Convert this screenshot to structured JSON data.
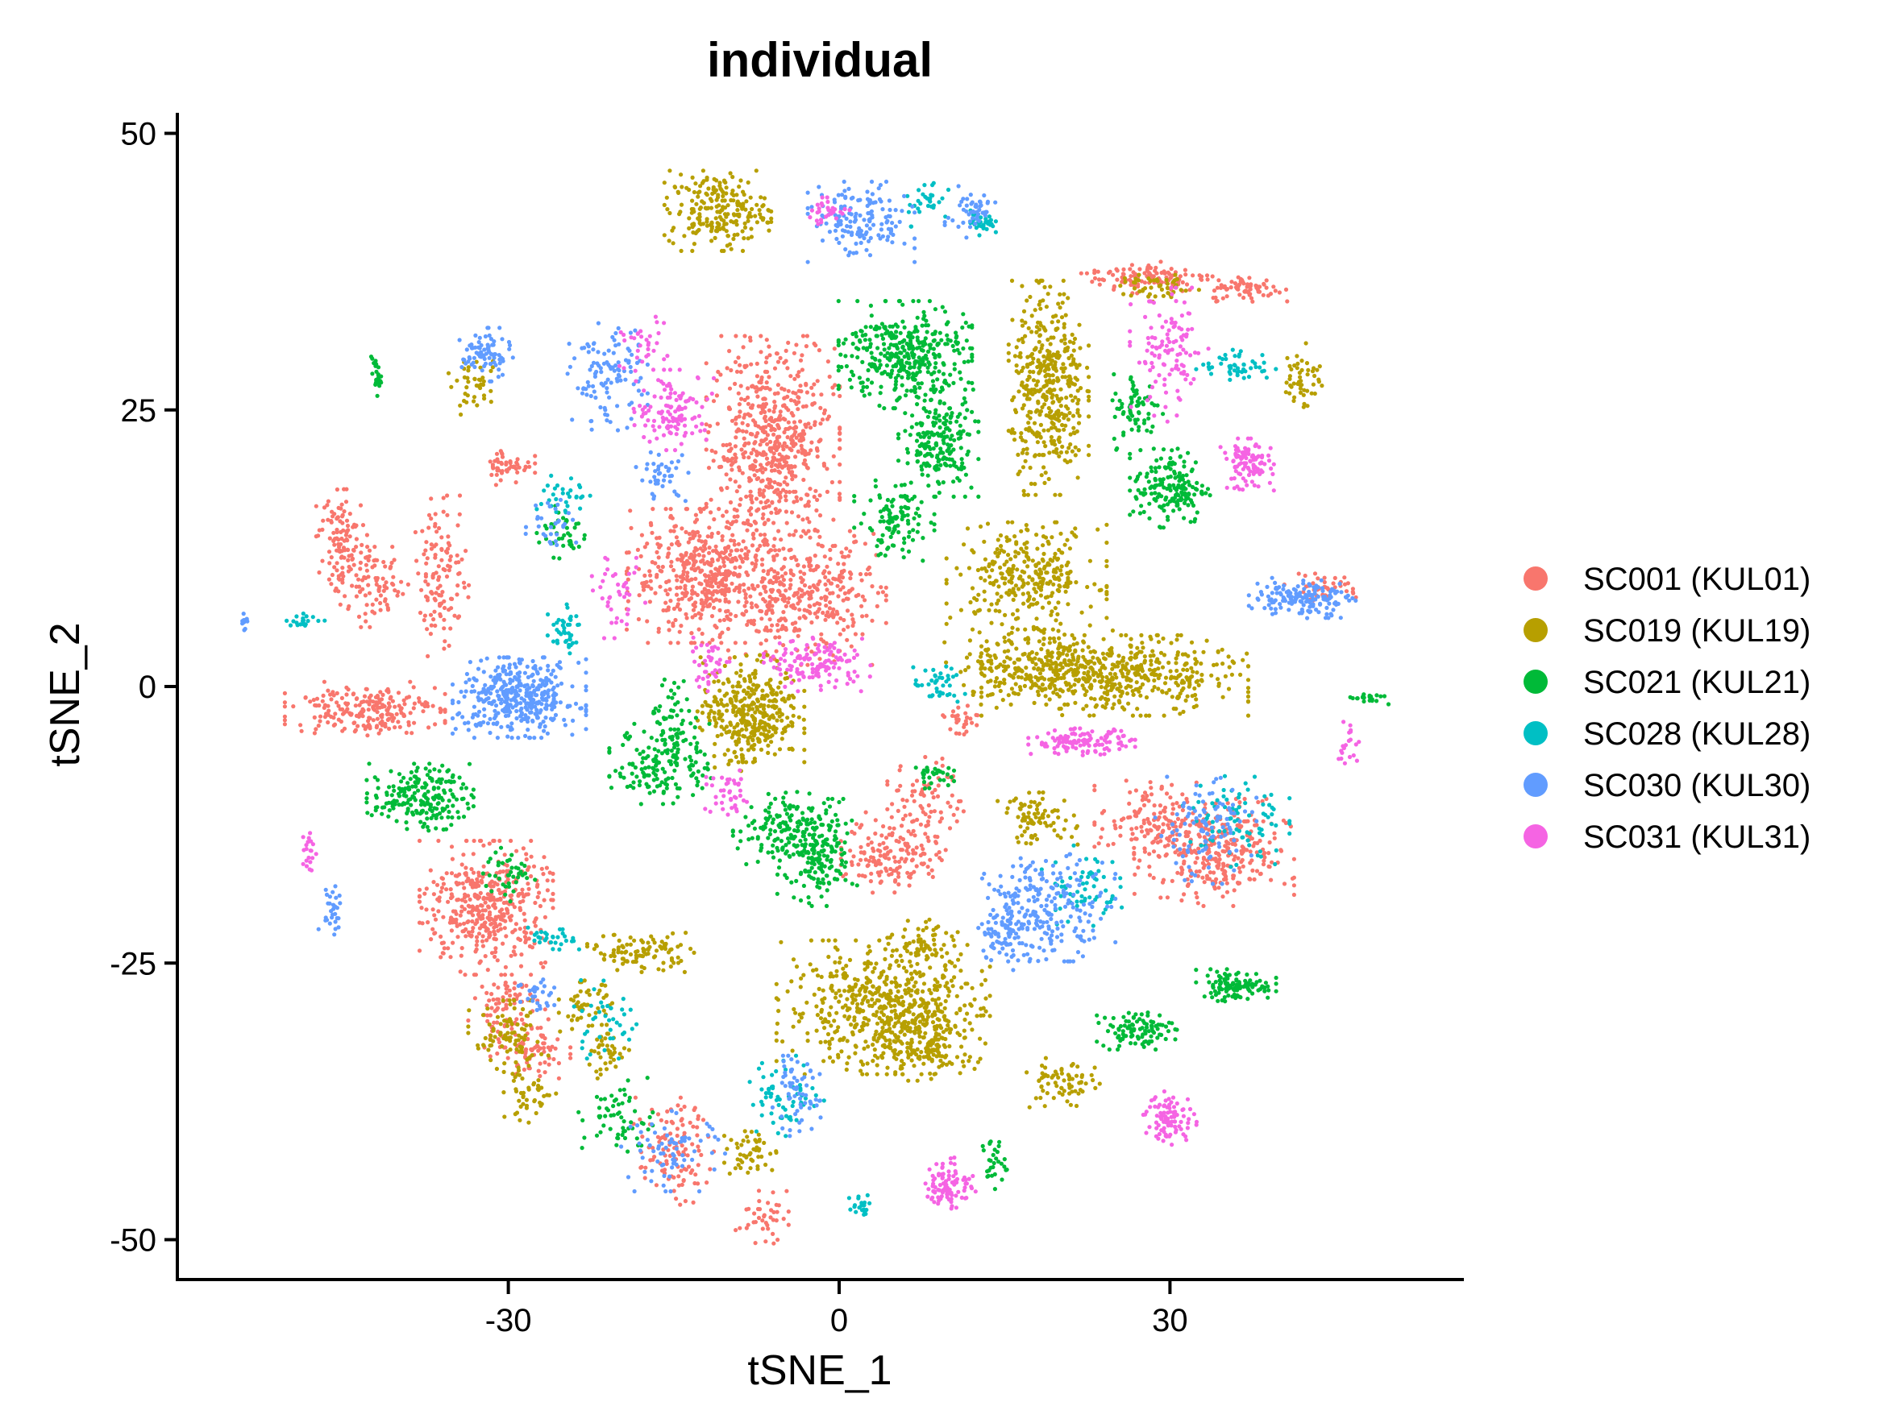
{
  "chart_data": {
    "type": "scatter",
    "title": "individual",
    "xlabel": "tSNE_1",
    "ylabel": "tSNE_2",
    "xlim": [
      -60,
      56
    ],
    "ylim": [
      -53,
      52
    ],
    "x_ticks": [
      -30,
      0,
      30
    ],
    "x_tick_labels": [
      "-30",
      "0",
      "30"
    ],
    "y_ticks": [
      50,
      25,
      0,
      -25,
      -50
    ],
    "y_tick_labels": [
      "50",
      "25",
      "0",
      "-25",
      "-50"
    ],
    "grid": false,
    "legend_position": "right",
    "series": [
      {
        "name": "SC001 (KUL01)",
        "color": "#F8766D",
        "clusters": [
          [
            -6,
            22,
            5,
            8,
            600
          ],
          [
            -12,
            10,
            6,
            5,
            500
          ],
          [
            -3,
            8,
            6,
            5,
            350
          ],
          [
            -45,
            13,
            2,
            4,
            120
          ],
          [
            -36,
            10,
            2,
            6,
            120
          ],
          [
            -42,
            9,
            3,
            3,
            80
          ],
          [
            -43,
            -2,
            6,
            2,
            220
          ],
          [
            -32,
            -20,
            5,
            5,
            420
          ],
          [
            -30,
            -29,
            3,
            3,
            90
          ],
          [
            -28,
            -33,
            3,
            2,
            70
          ],
          [
            -15,
            -42,
            3,
            4,
            110
          ],
          [
            -7,
            -48,
            2,
            2,
            40
          ],
          [
            5,
            -15,
            4,
            3,
            160
          ],
          [
            8,
            -10,
            3,
            3,
            70
          ],
          [
            34,
            -15,
            6,
            4,
            320
          ],
          [
            28,
            -12,
            4,
            3,
            110
          ],
          [
            28,
            37,
            5,
            1.2,
            110
          ],
          [
            37,
            36,
            3,
            1,
            70
          ],
          [
            -30,
            20,
            2,
            1.5,
            50
          ],
          [
            44,
            9,
            3,
            1,
            40
          ],
          [
            11,
            -3,
            2,
            1.5,
            30
          ]
        ]
      },
      {
        "name": "SC019 (KUL19)",
        "color": "#B79F00",
        "clusters": [
          [
            -11,
            43,
            4,
            3,
            220
          ],
          [
            -8,
            -2,
            4,
            4,
            300
          ],
          [
            19,
            27,
            3,
            8,
            420
          ],
          [
            17,
            10,
            6,
            4,
            300
          ],
          [
            25,
            1,
            10,
            3,
            500
          ],
          [
            18,
            2,
            7,
            3,
            200
          ],
          [
            4,
            -29,
            8,
            5,
            550
          ],
          [
            8,
            -32,
            4,
            3,
            160
          ],
          [
            -18,
            -24,
            4,
            1.5,
            100
          ],
          [
            -23,
            -29,
            2,
            2,
            50
          ],
          [
            -30,
            -32,
            3,
            3,
            90
          ],
          [
            -28,
            -37,
            2,
            2,
            40
          ],
          [
            20,
            -36,
            3,
            2,
            70
          ],
          [
            18,
            -12,
            3,
            2,
            80
          ],
          [
            8,
            -23,
            3,
            2,
            60
          ],
          [
            42,
            28,
            1.5,
            2.5,
            50
          ],
          [
            -33,
            27,
            2,
            2,
            40
          ],
          [
            29,
            36,
            3,
            1,
            50
          ],
          [
            -21,
            -33,
            2,
            2,
            40
          ],
          [
            -8,
            -42,
            2,
            2,
            50
          ],
          [
            -9,
            -4,
            3,
            3,
            80
          ]
        ]
      },
      {
        "name": "SC021 (KUL21)",
        "color": "#00BA38",
        "clusters": [
          [
            6,
            30,
            5,
            4,
            380
          ],
          [
            9,
            22,
            3,
            4,
            200
          ],
          [
            5,
            15,
            3,
            3,
            110
          ],
          [
            -38,
            -10,
            4,
            2.5,
            200
          ],
          [
            -16,
            -7,
            4,
            3,
            150
          ],
          [
            -15,
            -3,
            2,
            3,
            60
          ],
          [
            -2,
            -15,
            3,
            4,
            200
          ],
          [
            -6,
            -13,
            3,
            3,
            100
          ],
          [
            30,
            18,
            3,
            3,
            170
          ],
          [
            27,
            25,
            2,
            3,
            70
          ],
          [
            36,
            -27,
            3,
            1.2,
            110
          ],
          [
            27,
            -31,
            3,
            1.5,
            100
          ],
          [
            -20,
            -39,
            3,
            3,
            60
          ],
          [
            14,
            -43,
            1,
            2,
            30
          ],
          [
            -42,
            28,
            0.4,
            1.5,
            25
          ],
          [
            -30,
            -17,
            2,
            2,
            40
          ],
          [
            48,
            -1,
            1.5,
            0.5,
            20
          ],
          [
            8,
            -8,
            2,
            1,
            30
          ],
          [
            -25,
            14,
            2,
            2,
            40
          ]
        ]
      },
      {
        "name": "SC028 (KUL28)",
        "color": "#00BFC4",
        "clusters": [
          [
            -25,
            5,
            1.5,
            2,
            40
          ],
          [
            9,
            0,
            2,
            1.5,
            40
          ],
          [
            13,
            42,
            1,
            1,
            30
          ],
          [
            36,
            29,
            3,
            1.2,
            50
          ],
          [
            -5,
            -37,
            3,
            3,
            60
          ],
          [
            -48,
            6,
            2,
            0.5,
            20
          ],
          [
            2,
            -47,
            1,
            1,
            20
          ],
          [
            22,
            -18,
            3,
            3,
            60
          ],
          [
            36,
            -12,
            4,
            4,
            80
          ],
          [
            -21,
            -30,
            3,
            3,
            40
          ],
          [
            -26,
            -23,
            2,
            1,
            30
          ],
          [
            -25,
            17,
            2,
            2,
            30
          ],
          [
            8,
            44,
            2,
            2,
            30
          ]
        ]
      },
      {
        "name": "SC030 (KUL30)",
        "color": "#619CFF",
        "clusters": [
          [
            -29,
            -1,
            5,
            3,
            400
          ],
          [
            2,
            42,
            4,
            3,
            150
          ],
          [
            12,
            43,
            2,
            2,
            50
          ],
          [
            -32,
            30,
            2,
            2,
            80
          ],
          [
            -21,
            28,
            3,
            4,
            110
          ],
          [
            19,
            -20,
            5,
            4,
            220
          ],
          [
            15,
            -22,
            2,
            3,
            80
          ],
          [
            42,
            8,
            4,
            1.5,
            150
          ],
          [
            33,
            -13,
            4,
            4,
            100
          ],
          [
            -4,
            -37,
            2,
            3,
            60
          ],
          [
            -15,
            -42,
            4,
            3,
            70
          ],
          [
            -16,
            19,
            2,
            2,
            40
          ],
          [
            -46,
            -20,
            1,
            2,
            30
          ],
          [
            -27,
            -28,
            2,
            2,
            30
          ],
          [
            -26,
            15,
            2,
            2,
            30
          ],
          [
            -54,
            6,
            0.4,
            1,
            10
          ]
        ]
      },
      {
        "name": "SC031 (KUL31)",
        "color": "#F564E3",
        "clusters": [
          [
            -15,
            25,
            3,
            3,
            120
          ],
          [
            -2,
            2,
            4,
            2,
            130
          ],
          [
            22,
            -5,
            4,
            1,
            120
          ],
          [
            30,
            30,
            3,
            5,
            110
          ],
          [
            37,
            20,
            2,
            2,
            100
          ],
          [
            30,
            -39,
            2,
            2,
            90
          ],
          [
            10,
            -45,
            2,
            2,
            90
          ],
          [
            -20,
            8,
            2,
            3,
            40
          ],
          [
            -10,
            -10,
            2,
            2,
            40
          ],
          [
            -1,
            43,
            2,
            1,
            30
          ],
          [
            46,
            -5,
            1,
            2,
            20
          ],
          [
            -48,
            -15,
            0.5,
            2,
            20
          ],
          [
            -18,
            31,
            2,
            2,
            30
          ],
          [
            -12,
            2,
            2,
            2,
            40
          ]
        ]
      }
    ]
  }
}
